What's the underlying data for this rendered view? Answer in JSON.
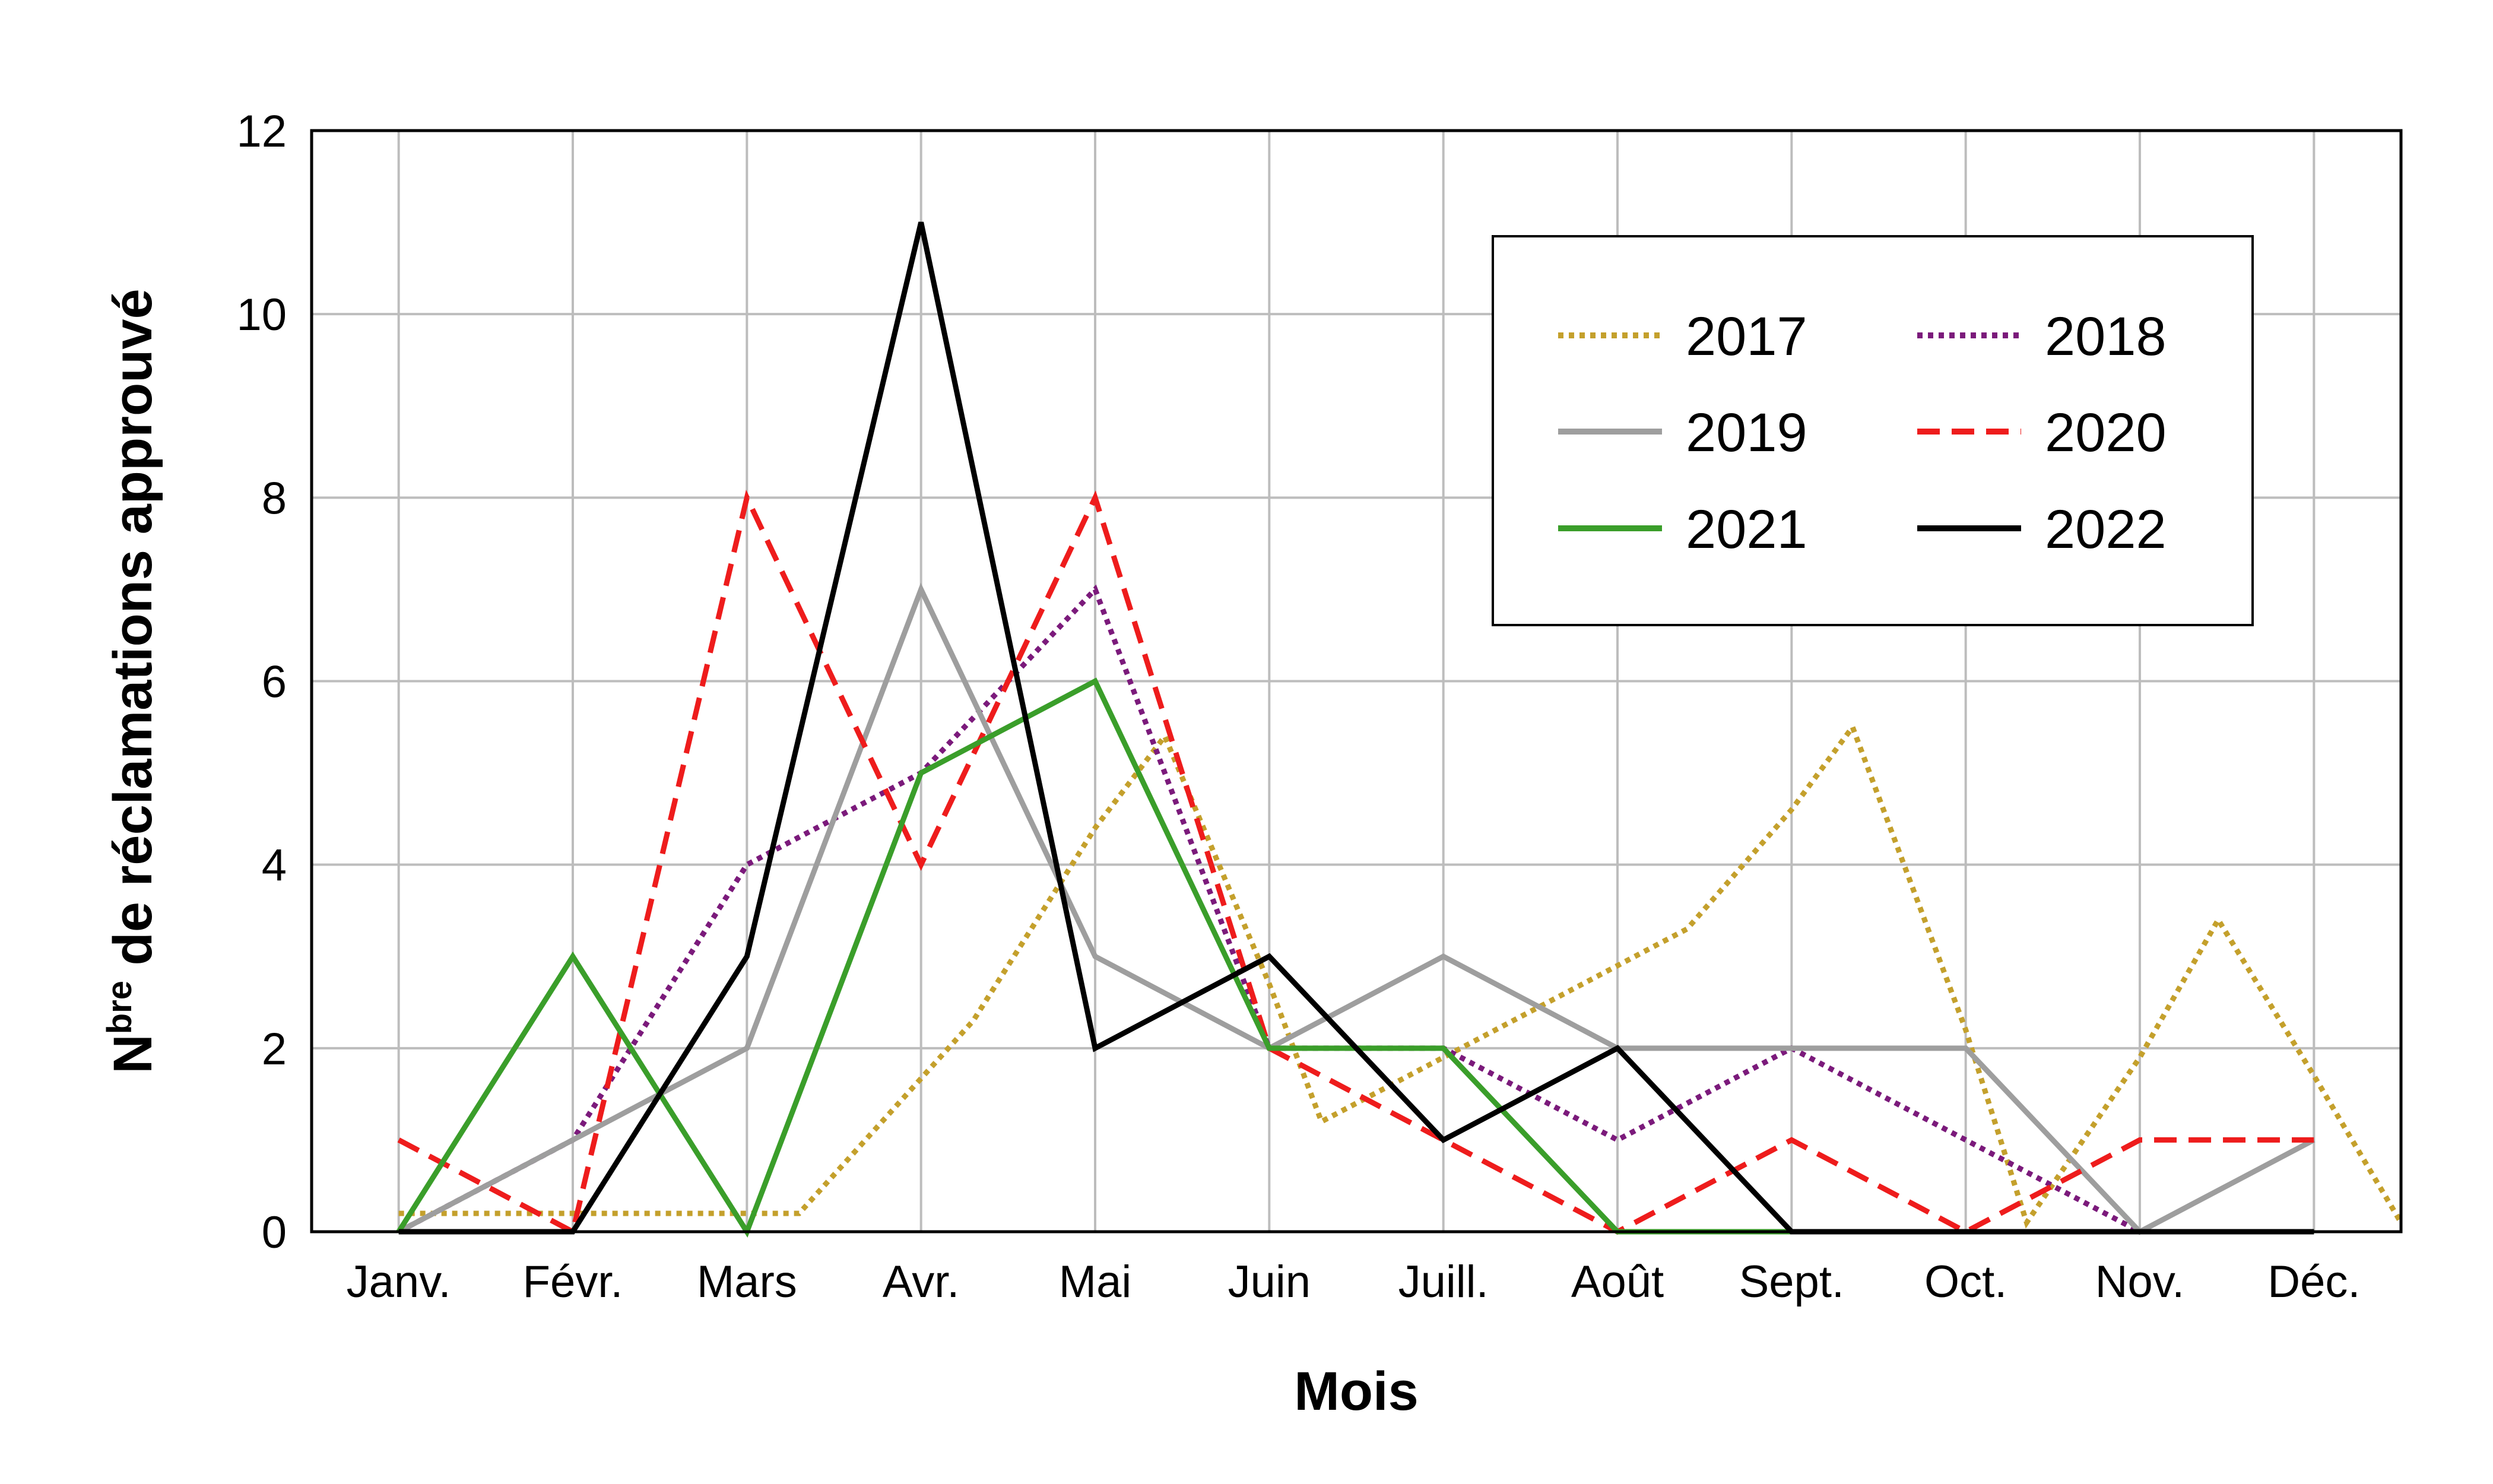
{
  "chart_data": {
    "type": "line",
    "xlabel": "Mois",
    "ylabel": {
      "prefix": "N",
      "superscript": "bre",
      "suffix": " de réclamations approuvé"
    },
    "categories": [
      "Janv.",
      "Févr.",
      "Mars",
      "Avr.",
      "Mai",
      "Juin",
      "Juill.",
      "Août",
      "Sept.",
      "Oct.",
      "Nov.",
      "Déc."
    ],
    "ylim": [
      0,
      12
    ],
    "yticks": [
      0,
      2,
      4,
      6,
      8,
      10,
      12
    ],
    "grid": true,
    "legend_position": "top-right",
    "series": [
      {
        "name": "2017",
        "color": "#c4a02c",
        "dash": "dotted",
        "x": [
          0,
          0.3,
          1,
          2,
          2.3,
          3.3,
          4,
          4.4,
          5,
          5.3,
          6,
          6.5,
          7,
          7.4,
          8,
          8.35,
          9,
          9.35,
          10,
          10.45,
          11,
          11.5
        ],
        "values": [
          0.2,
          0.2,
          0.2,
          0.2,
          0.2,
          2.3,
          4.4,
          5.4,
          2.7,
          1.2,
          1.9,
          2.4,
          2.9,
          3.3,
          4.6,
          5.5,
          2.2,
          0.1,
          1.9,
          3.4,
          1.7,
          0.1
        ]
      },
      {
        "name": "2018",
        "color": "#7b1a7b",
        "dash": "dotted",
        "values": [
          0,
          1,
          4,
          5,
          7,
          2,
          2,
          1,
          2,
          1,
          0,
          null
        ]
      },
      {
        "name": "2019",
        "color": "#9e9e9e",
        "dash": "solid",
        "values": [
          0,
          1,
          2,
          7,
          3,
          2,
          3,
          2,
          2,
          2,
          0,
          1
        ]
      },
      {
        "name": "2020",
        "color": "#ee1c1c",
        "dash": "dashed",
        "values": [
          1,
          0,
          8,
          4,
          8,
          2,
          1,
          0,
          1,
          0,
          1,
          1
        ]
      },
      {
        "name": "2021",
        "color": "#3a9e2a",
        "dash": "solid",
        "values": [
          0,
          3,
          0,
          5,
          6,
          2,
          2,
          0,
          0,
          0,
          0,
          0
        ]
      },
      {
        "name": "2022",
        "color": "#000000",
        "dash": "solid",
        "values": [
          0,
          0,
          3,
          11,
          2,
          3,
          1,
          2,
          0,
          0,
          0,
          0
        ]
      }
    ]
  }
}
